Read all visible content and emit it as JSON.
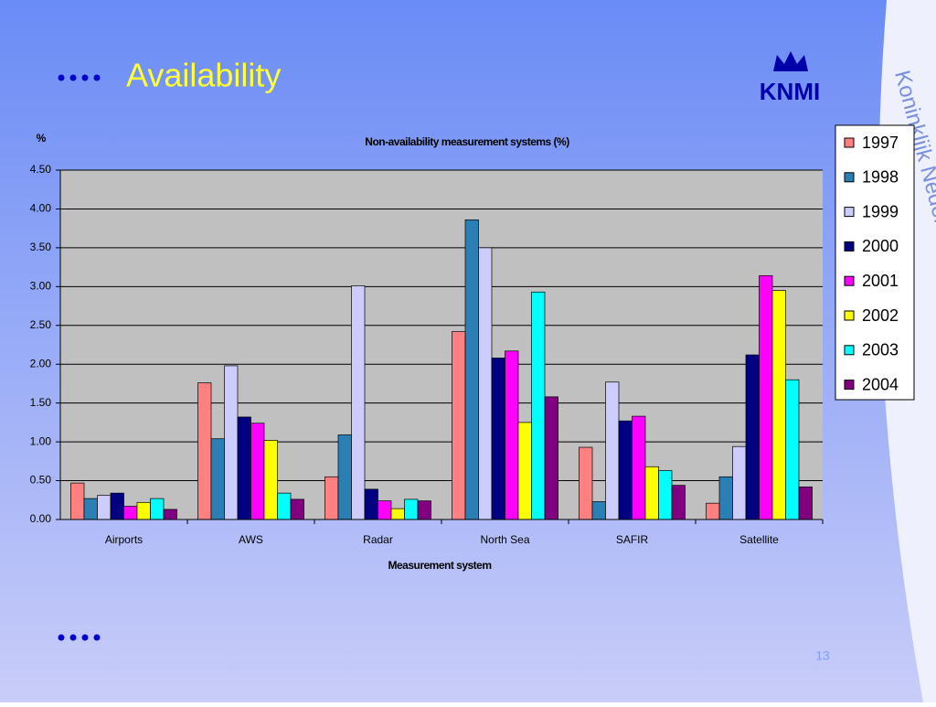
{
  "slide": {
    "heading": "Availability",
    "logo": "KNMI",
    "side_text": "Koninklijk Nederlands Meteorologisch Instituut",
    "page_number": "13"
  },
  "chart_data": {
    "type": "bar",
    "title": "Non-availability measurement systems (%)",
    "y_label": "%",
    "x_label": "Measurement system",
    "categories": [
      "Airports",
      "AWS",
      "Radar",
      "North Sea",
      "SAFIR",
      "Satellite"
    ],
    "series": [
      {
        "name": "1997",
        "color": "#ff8080",
        "values": [
          0.47,
          1.76,
          0.55,
          2.42,
          0.93,
          0.21
        ]
      },
      {
        "name": "1998",
        "color": "#2a7fb5",
        "values": [
          0.27,
          1.04,
          1.09,
          3.86,
          0.23,
          0.55
        ]
      },
      {
        "name": "1999",
        "color": "#ccccff",
        "values": [
          0.31,
          1.98,
          3.01,
          3.5,
          1.77,
          0.94
        ]
      },
      {
        "name": "2000",
        "color": "#000080",
        "values": [
          0.34,
          1.32,
          0.39,
          2.08,
          1.27,
          2.12
        ]
      },
      {
        "name": "2001",
        "color": "#ff00ff",
        "values": [
          0.17,
          1.24,
          0.24,
          2.17,
          1.33,
          3.14
        ]
      },
      {
        "name": "2002",
        "color": "#ffff00",
        "values": [
          0.22,
          1.02,
          0.14,
          1.25,
          0.68,
          2.95
        ]
      },
      {
        "name": "2003",
        "color": "#00ffff",
        "values": [
          0.27,
          0.34,
          0.26,
          2.93,
          0.63,
          1.8
        ]
      },
      {
        "name": "2004",
        "color": "#800080",
        "values": [
          0.13,
          0.26,
          0.24,
          1.58,
          0.44,
          0.42
        ]
      }
    ],
    "ylim": [
      0,
      4.5
    ],
    "yticks": [
      {
        "value": 0,
        "label": "0.00"
      },
      {
        "value": 0.5,
        "label": "0.50"
      },
      {
        "value": 1,
        "label": "1.00"
      },
      {
        "value": 1.5,
        "label": "1.50"
      },
      {
        "value": 2,
        "label": "2.00"
      },
      {
        "value": 2.5,
        "label": "2.50"
      },
      {
        "value": 3,
        "label": "3.00"
      },
      {
        "value": 3.5,
        "label": "3.50"
      },
      {
        "value": 4,
        "label": "4.00"
      },
      {
        "value": 4.5,
        "label": "4.50"
      }
    ],
    "grid": true,
    "plot_background": "#c0c0c0"
  }
}
